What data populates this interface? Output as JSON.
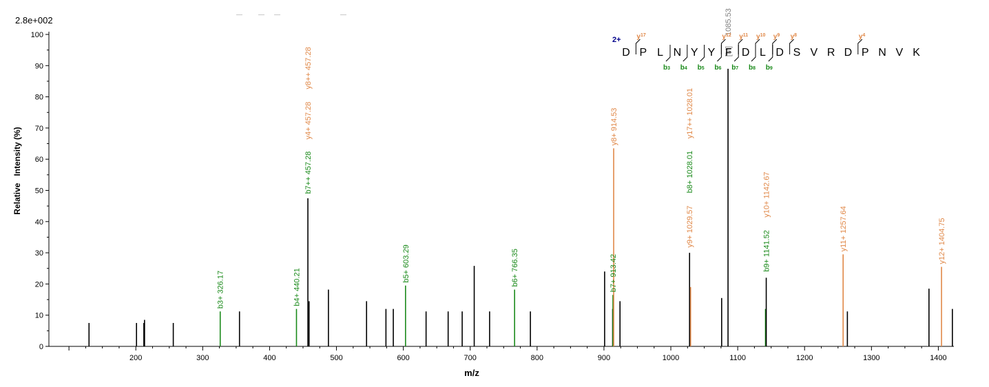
{
  "header": {
    "max_intensity": "2.8e+002"
  },
  "chart_data": {
    "type": "bar",
    "xlabel": "m/z",
    "ylabel": "Relative   Intensity (%)",
    "xlim": [
      70,
      1460
    ],
    "ylim": [
      0,
      100
    ],
    "x_ticks": [
      200,
      300,
      400,
      500,
      600,
      700,
      800,
      900,
      1000,
      1100,
      1200,
      1300,
      1400
    ],
    "y_ticks": [
      0,
      10,
      20,
      30,
      40,
      50,
      60,
      70,
      80,
      90,
      100
    ],
    "colors": {
      "unassigned": "#000000",
      "b_ion": "#1a8a1a",
      "y_ion": "#e08848",
      "precursor": "#808080",
      "charge": "#00008b"
    },
    "peaks": [
      {
        "mz": 130,
        "intensity": 7.5,
        "type": "none"
      },
      {
        "mz": 201,
        "intensity": 7.5,
        "type": "none"
      },
      {
        "mz": 212,
        "intensity": 7.5,
        "type": "none"
      },
      {
        "mz": 213,
        "intensity": 8.5,
        "type": "none"
      },
      {
        "mz": 256,
        "intensity": 7.5,
        "type": "none"
      },
      {
        "mz": 326.17,
        "intensity": 11.2,
        "type": "b",
        "label": "b3+ 326.17"
      },
      {
        "mz": 355,
        "intensity": 11.2,
        "type": "none"
      },
      {
        "mz": 440.21,
        "intensity": 12,
        "type": "b",
        "label": "b4+ 440.21"
      },
      {
        "mz": 457.28,
        "intensity": 47.5,
        "type": "none"
      },
      {
        "mz": 459,
        "intensity": 14.5,
        "type": "none"
      },
      {
        "mz": 488,
        "intensity": 18.2,
        "type": "none"
      },
      {
        "mz": 545,
        "intensity": 14.5,
        "type": "none"
      },
      {
        "mz": 574,
        "intensity": 12,
        "type": "none"
      },
      {
        "mz": 585,
        "intensity": 12,
        "type": "none"
      },
      {
        "mz": 603.29,
        "intensity": 19.5,
        "type": "b",
        "label": "b5+ 603.29"
      },
      {
        "mz": 634,
        "intensity": 11.2,
        "type": "none"
      },
      {
        "mz": 667,
        "intensity": 11.2,
        "type": "none"
      },
      {
        "mz": 688,
        "intensity": 11.2,
        "type": "none"
      },
      {
        "mz": 706,
        "intensity": 25.8,
        "type": "none"
      },
      {
        "mz": 729,
        "intensity": 11.2,
        "type": "none"
      },
      {
        "mz": 766.35,
        "intensity": 18.2,
        "type": "b",
        "label": "b6+ 766.35"
      },
      {
        "mz": 790,
        "intensity": 11.2,
        "type": "none"
      },
      {
        "mz": 901,
        "intensity": 24,
        "type": "none"
      },
      {
        "mz": 913,
        "intensity": 12,
        "type": "none"
      },
      {
        "mz": 913.42,
        "intensity": 16.5,
        "type": "b",
        "label": "b7+ 913.42"
      },
      {
        "mz": 914.53,
        "intensity": 63.5,
        "type": "y",
        "label": "y8+ 914.53"
      },
      {
        "mz": 924,
        "intensity": 14.5,
        "type": "none"
      },
      {
        "mz": 1028.01,
        "intensity": 30,
        "type": "none"
      },
      {
        "mz": 1029.57,
        "intensity": 19,
        "type": "y"
      },
      {
        "mz": 1076,
        "intensity": 15.5,
        "type": "none"
      },
      {
        "mz": 1085.53,
        "intensity": 89,
        "type": "none"
      },
      {
        "mz": 1141.52,
        "intensity": 12,
        "type": "b"
      },
      {
        "mz": 1142.67,
        "intensity": 22,
        "type": "none"
      },
      {
        "mz": 1257.64,
        "intensity": 29.5,
        "type": "y",
        "label": "y11+ 1257.64"
      },
      {
        "mz": 1264,
        "intensity": 11.2,
        "type": "none"
      },
      {
        "mz": 1386,
        "intensity": 18.5,
        "type": "none"
      },
      {
        "mz": 1404.75,
        "intensity": 25.5,
        "type": "y",
        "label": "y12+ 1404.75"
      },
      {
        "mz": 1421,
        "intensity": 12,
        "type": "none"
      }
    ],
    "annotations": [
      {
        "mz": 457.28,
        "base": 48,
        "lines": [
          {
            "text": "b7++ 457.28",
            "color": "b"
          },
          {
            "text": "y4+ 457.28",
            "color": "y"
          },
          {
            "text": "y8++ 457.28",
            "color": "y"
          }
        ]
      },
      {
        "mz": 1028.01,
        "base": 30.8,
        "lines": [
          {
            "text": "y9+ 1029.57",
            "color": "y"
          },
          {
            "text": "b8+ 1028.01",
            "color": "b"
          },
          {
            "text": "y17++ 1028.01",
            "color": "y"
          }
        ]
      },
      {
        "mz": 1142.67,
        "base": 23,
        "lines": [
          {
            "text": "b9+ 1141.52",
            "color": "b"
          },
          {
            "text": "y10+ 1142.67",
            "color": "y"
          }
        ]
      },
      {
        "mz": 1085.53,
        "base": 92,
        "lines": [
          {
            "text": "[M]",
            "color": "p"
          },
          {
            "text": "1085.53",
            "color": "p"
          }
        ]
      }
    ],
    "sequence": {
      "charge": "2+",
      "residues": [
        "D",
        "P",
        "L",
        "N",
        "Y",
        "Y",
        "F",
        "D",
        "L",
        "D",
        "S",
        "V",
        "R",
        "D",
        "P",
        "N",
        "V",
        "K"
      ],
      "y_ions": [
        {
          "after": 1,
          "ion": "y",
          "num": "17"
        },
        {
          "after": 6,
          "ion": "y",
          "num": "12"
        },
        {
          "after": 7,
          "ion": "y",
          "num": "11"
        },
        {
          "after": 8,
          "ion": "y",
          "num": "10"
        },
        {
          "after": 9,
          "ion": "y",
          "num": "9"
        },
        {
          "after": 10,
          "ion": "y",
          "num": "8"
        },
        {
          "after": 14,
          "ion": "y",
          "num": "4"
        }
      ],
      "b_ions": [
        {
          "after": 3,
          "ion": "b",
          "num": "3"
        },
        {
          "after": 4,
          "ion": "b",
          "num": "4"
        },
        {
          "after": 5,
          "ion": "b",
          "num": "5"
        },
        {
          "after": 6,
          "ion": "b",
          "num": "6"
        },
        {
          "after": 7,
          "ion": "b",
          "num": "7"
        },
        {
          "after": 8,
          "ion": "b",
          "num": "8"
        },
        {
          "after": 9,
          "ion": "b",
          "num": "9"
        }
      ]
    }
  }
}
